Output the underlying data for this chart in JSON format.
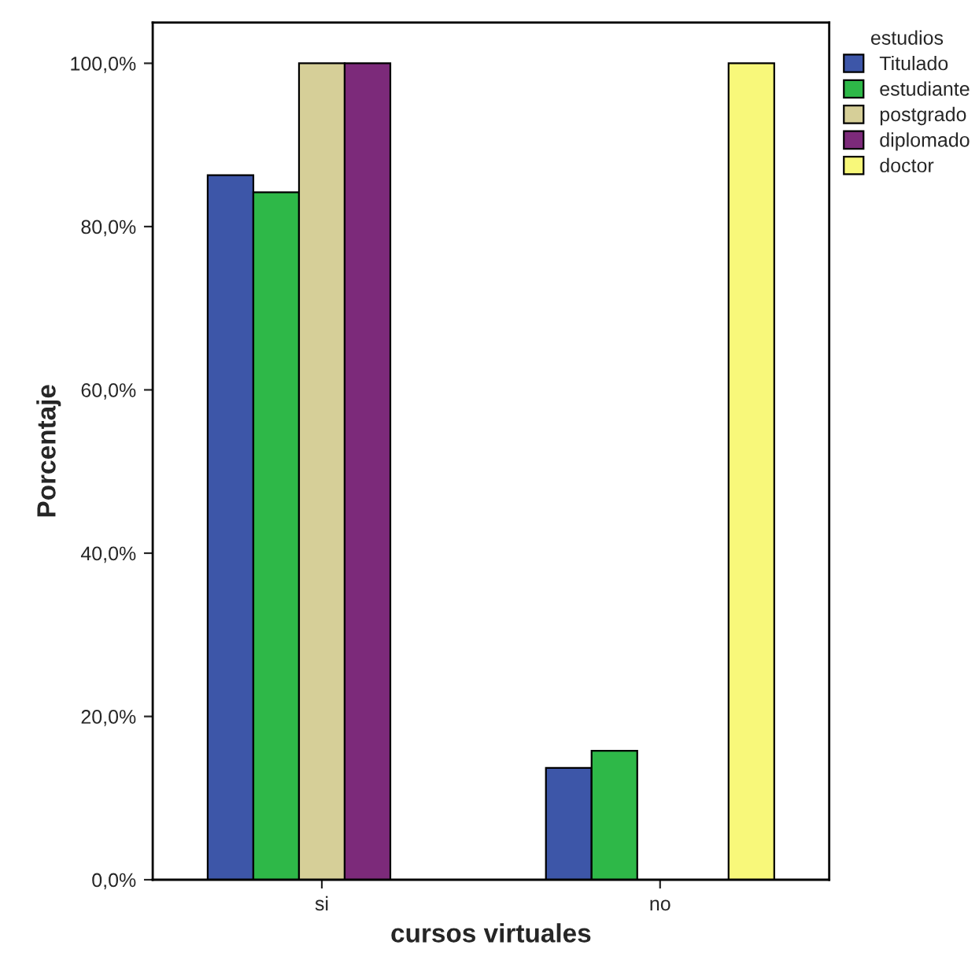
{
  "chart_data": {
    "type": "bar",
    "xlabel": "cursos virtuales",
    "ylabel": "Porcentaje",
    "legend_title": "estudios",
    "categories": [
      "si",
      "no"
    ],
    "series": [
      {
        "name": "Titulado",
        "color": "#3d56a8",
        "values": [
          86.3,
          13.7
        ]
      },
      {
        "name": "estudiante",
        "color": "#2eb848",
        "values": [
          84.2,
          15.8
        ]
      },
      {
        "name": "postgrado",
        "color": "#d6cf98",
        "values": [
          100,
          0
        ]
      },
      {
        "name": "diplomado",
        "color": "#7c2a7a",
        "values": [
          100,
          0
        ]
      },
      {
        "name": "doctor",
        "color": "#f8f87a",
        "values": [
          0,
          100
        ]
      }
    ],
    "ylim": [
      0,
      105
    ],
    "yticks": [
      {
        "value": 0,
        "label": "0,0%"
      },
      {
        "value": 20,
        "label": "20,0%"
      },
      {
        "value": 40,
        "label": "40,0%"
      },
      {
        "value": 60,
        "label": "60,0%"
      },
      {
        "value": 80,
        "label": "80,0%"
      },
      {
        "value": 100,
        "label": "100,0%"
      }
    ],
    "grid": false,
    "legend": "top right"
  }
}
